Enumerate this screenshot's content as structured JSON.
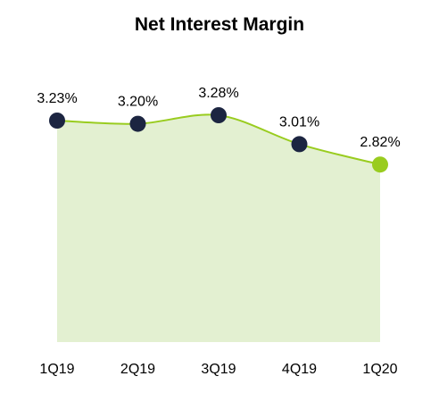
{
  "chart_data": {
    "type": "area",
    "title": "Net Interest Margin",
    "xlabel": "",
    "ylabel": "",
    "categories": [
      "1Q19",
      "2Q19",
      "3Q19",
      "4Q19",
      "1Q20"
    ],
    "series": [
      {
        "values": [
          3.23,
          3.2,
          3.28,
          3.01,
          2.82
        ],
        "data_labels": [
          "3.23%",
          "3.20%",
          "3.28%",
          "3.01%",
          "2.82%"
        ]
      }
    ],
    "unit": "%",
    "grid": false,
    "legend": "none",
    "colors": {
      "fill": "#e3f0d1",
      "line": "#99cc1f",
      "marker": "#1c2541",
      "highlight_marker": "#99cc1f"
    }
  }
}
